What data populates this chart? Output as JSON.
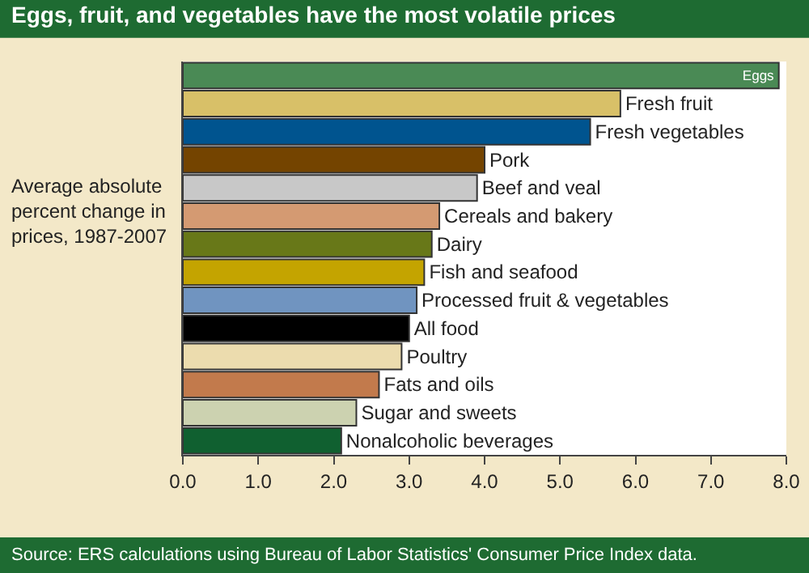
{
  "chart_data": {
    "type": "bar",
    "orientation": "horizontal",
    "title": "Eggs, fruit, and vegetables have the most volatile prices",
    "ylabel": "Average absolute percent change in prices, 1987-2007",
    "categories": [
      "Eggs",
      "Fresh fruit",
      "Fresh vegetables",
      "Pork",
      "Beef and veal",
      "Cereals and bakery",
      "Dairy",
      "Fish and seafood",
      "Processed fruit & vegetables",
      "All food",
      "Poultry",
      "Fats and oils",
      "Sugar and sweets",
      "Nonalcoholic beverages"
    ],
    "values": [
      7.9,
      5.8,
      5.4,
      4.0,
      3.9,
      3.4,
      3.3,
      3.2,
      3.1,
      3.0,
      2.9,
      2.6,
      2.3,
      2.1
    ],
    "colors": [
      "#4a8a55",
      "#d8c068",
      "#00548f",
      "#744400",
      "#c8c8c8",
      "#d49a72",
      "#687818",
      "#c4a400",
      "#7094c0",
      "#000000",
      "#ecdcae",
      "#c27a4c",
      "#ccd2b0",
      "#106030"
    ],
    "xlim": [
      0,
      8
    ],
    "xticks": [
      {
        "value": 0,
        "label": "0.0"
      },
      {
        "value": 1,
        "label": "1.0"
      },
      {
        "value": 2,
        "label": "2.0"
      },
      {
        "value": 3,
        "label": "3.0"
      },
      {
        "value": 4,
        "label": "4.0"
      },
      {
        "value": 5,
        "label": "5.0"
      },
      {
        "value": 6,
        "label": "6.0"
      },
      {
        "value": 7,
        "label": "7.0"
      },
      {
        "value": 8,
        "label": "8.0"
      }
    ],
    "tick_labels": "x",
    "annotations": [
      "Source: ERS calculations using Bureau of Labor Statistics' Consumer Price Index data."
    ]
  }
}
